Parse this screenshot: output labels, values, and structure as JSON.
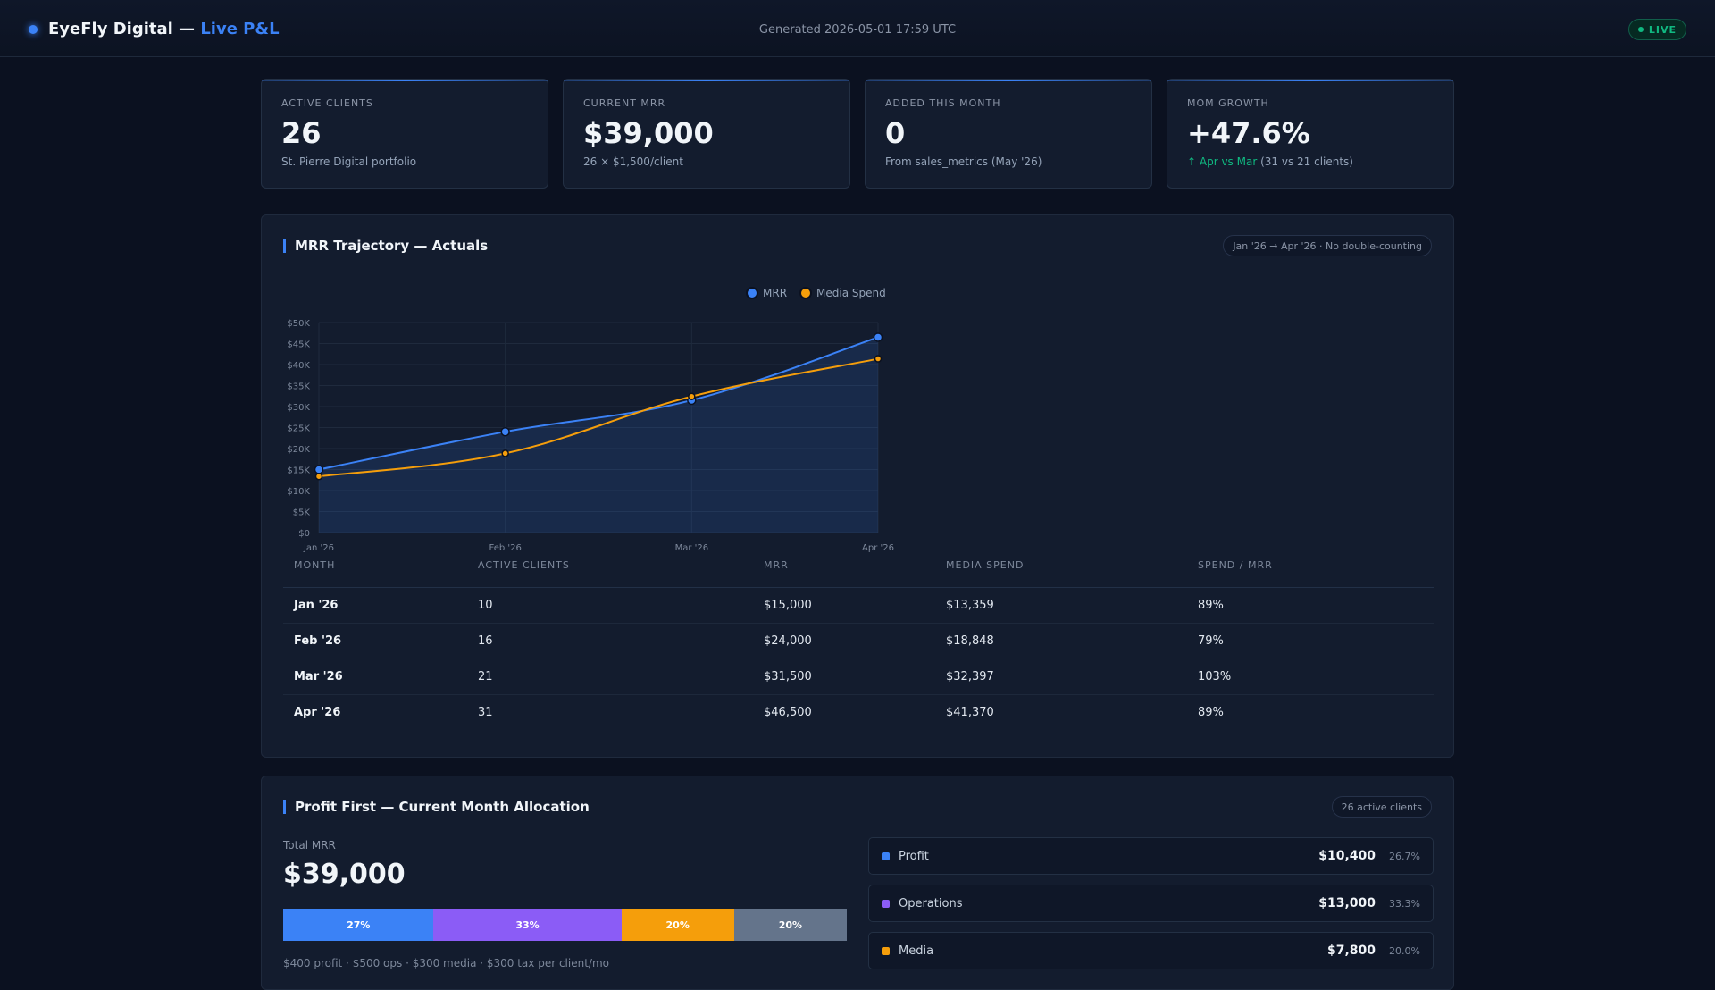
{
  "header": {
    "title_prefix": "EyeFly Digital — ",
    "title_accent": "Live P&L",
    "generated": "Generated 2026-05-01 17:59 UTC",
    "live_label": "LIVE"
  },
  "kpis": [
    {
      "label": "ACTIVE CLIENTS",
      "value": "26",
      "sub": "St. Pierre Digital portfolio"
    },
    {
      "label": "CURRENT MRR",
      "value": "$39,000",
      "sub": "26 × $1,500/client"
    },
    {
      "label": "ADDED THIS MONTH",
      "value": "0",
      "sub": "From sales_metrics (May '26)"
    },
    {
      "label": "MOM GROWTH",
      "value": "+47.6%",
      "sub_up": "↑ Apr vs Mar",
      "sub": " (31 vs 21 clients)"
    }
  ],
  "mrr_panel": {
    "title": "MRR Trajectory — Actuals",
    "pill": "Jan '26 → Apr '26 · No double-counting",
    "columns": [
      "MONTH",
      "ACTIVE CLIENTS",
      "MRR",
      "MEDIA SPEND",
      "SPEND / MRR"
    ],
    "rows": [
      [
        "Jan '26",
        "10",
        "$15,000",
        "$13,359",
        "89%"
      ],
      [
        "Feb '26",
        "16",
        "$24,000",
        "$18,848",
        "79%"
      ],
      [
        "Mar '26",
        "21",
        "$31,500",
        "$32,397",
        "103%"
      ],
      [
        "Apr '26",
        "31",
        "$46,500",
        "$41,370",
        "89%"
      ]
    ]
  },
  "chart_data": {
    "type": "line",
    "categories": [
      "Jan '26",
      "Feb '26",
      "Mar '26",
      "Apr '26"
    ],
    "series": [
      {
        "name": "MRR",
        "values": [
          15000,
          24000,
          31500,
          46500
        ],
        "color": "#3b82f6",
        "fill": true
      },
      {
        "name": "Media Spend",
        "values": [
          13359,
          18848,
          32397,
          41370
        ],
        "color": "#f59e0b",
        "fill": false
      }
    ],
    "ylim": [
      0,
      50000
    ],
    "yticks": [
      "$0",
      "$5K",
      "$10K",
      "$15K",
      "$20K",
      "$25K",
      "$30K",
      "$35K",
      "$40K",
      "$45K",
      "$50K"
    ],
    "grid": true,
    "legend": "top"
  },
  "profit_panel": {
    "title": "Profit First — Current Month Allocation",
    "pill": "26 active clients",
    "total_label": "Total MRR",
    "total_value": "$39,000",
    "note": "$400 profit · $500 ops · $300 media · $300 tax per client/mo",
    "segments": [
      {
        "label": "27%",
        "share": 26.7,
        "color": "#3b82f6"
      },
      {
        "label": "33%",
        "share": 33.3,
        "color": "#8b5cf6"
      },
      {
        "label": "20%",
        "share": 20.0,
        "color": "#f59e0b"
      },
      {
        "label": "20%",
        "share": 20.0,
        "color": "#64748b"
      }
    ],
    "items": [
      {
        "name": "Profit",
        "amount": "$10,400",
        "pct": "26.7%",
        "color": "#3b82f6"
      },
      {
        "name": "Operations",
        "amount": "$13,000",
        "pct": "33.3%",
        "color": "#8b5cf6"
      },
      {
        "name": "Media",
        "amount": "$7,800",
        "pct": "20.0%",
        "color": "#f59e0b"
      }
    ]
  }
}
